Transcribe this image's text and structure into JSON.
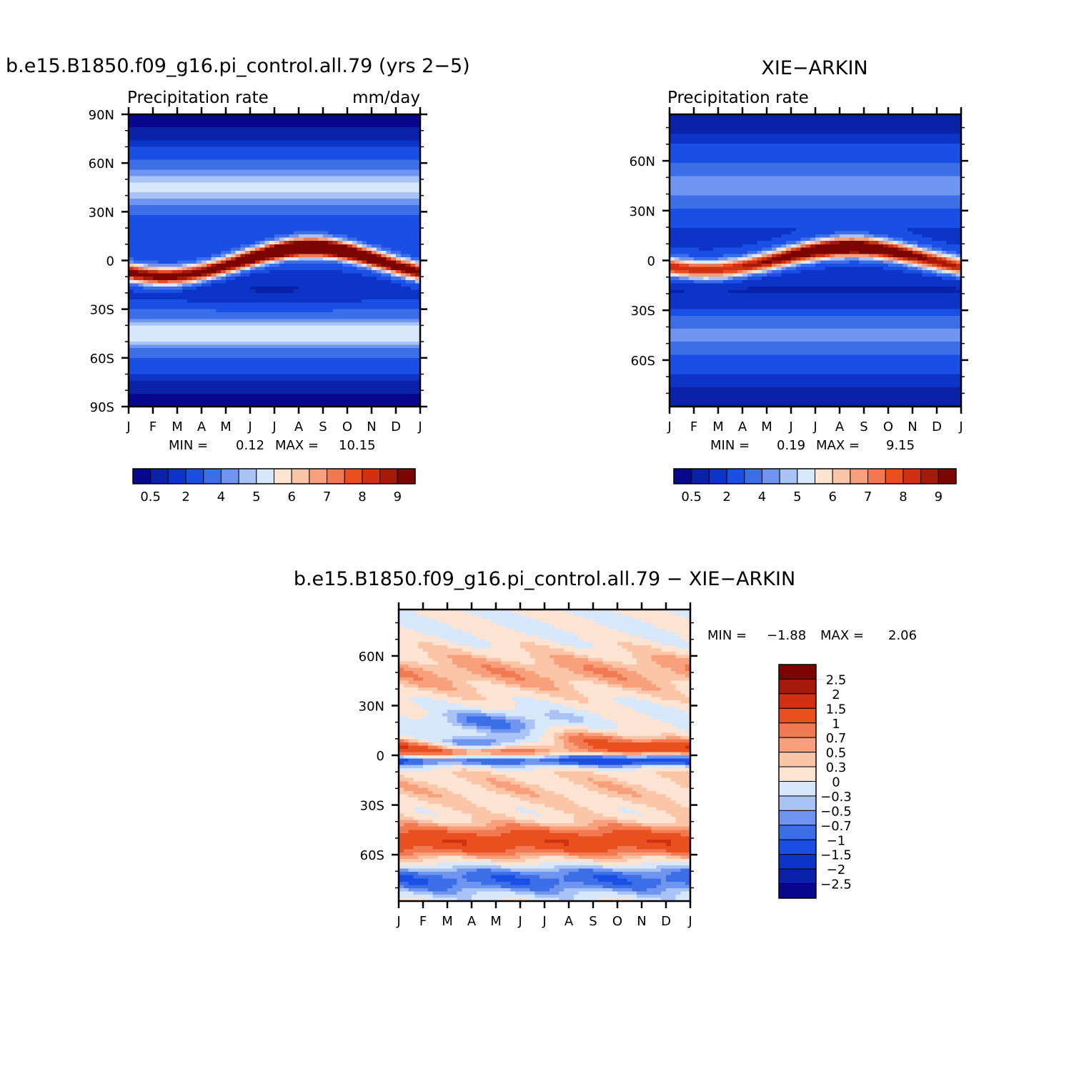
{
  "page": {
    "top_left_title": "b.e15.B1850.f09_g16.pi_control.all.79 (yrs 2-5)",
    "top_right_title": "XIE-ARKIN",
    "bottom_title": "b.e15.B1850.f09_g16.pi_control.all.79 - XIE-ARKIN"
  },
  "chart_data": [
    {
      "type": "heatmap",
      "title": "b.e15.B1850.f09_g16.pi_control.all.79 (yrs 2-5)",
      "subtitle_left": "Precipitation rate",
      "subtitle_right": "mm/day",
      "x_ticks": [
        "J",
        "F",
        "M",
        "A",
        "M",
        "J",
        "J",
        "A",
        "S",
        "O",
        "N",
        "D",
        "J"
      ],
      "y_ticks": [
        "90N",
        "60N",
        "30N",
        "0",
        "30S",
        "60S",
        "90S"
      ],
      "ylim": [
        -90,
        90
      ],
      "stats": {
        "min_label": "MIN =",
        "min": "0.12",
        "max_label": "MAX =",
        "max": "10.15"
      },
      "levels": [
        0.5,
        1,
        2,
        3,
        4,
        4.5,
        5,
        5.5,
        6,
        6.5,
        7,
        7.5,
        8,
        8.5,
        9
      ],
      "colorbar_labels": [
        "0.5",
        "2",
        "4",
        "5",
        "6",
        "7",
        "8",
        "9"
      ],
      "features": {
        "itcz_peak_month": 7.5,
        "itcz_peak_lat": 9,
        "itcz_peak_value": 10.15
      }
    },
    {
      "type": "heatmap",
      "title": "XIE-ARKIN",
      "subtitle_left": "Precipitation rate",
      "subtitle_right": "",
      "x_ticks": [
        "J",
        "F",
        "M",
        "A",
        "M",
        "J",
        "J",
        "A",
        "S",
        "O",
        "N",
        "D",
        "J"
      ],
      "y_ticks": [
        "60N",
        "30N",
        "0",
        "30S",
        "60S"
      ],
      "ylim": [
        -88,
        88
      ],
      "stats": {
        "min_label": "MIN =",
        "min": "0.19",
        "max_label": "MAX =",
        "max": "9.15"
      },
      "levels": [
        0.5,
        1,
        2,
        3,
        4,
        4.5,
        5,
        5.5,
        6,
        6.5,
        7,
        7.5,
        8,
        8.5,
        9
      ],
      "colorbar_labels": [
        "0.5",
        "2",
        "4",
        "5",
        "6",
        "7",
        "8",
        "9"
      ],
      "features": {
        "itcz_peak_month": 7.5,
        "itcz_peak_lat": 8,
        "itcz_peak_value": 9.15
      }
    },
    {
      "type": "heatmap",
      "title": "b.e15.B1850.f09_g16.pi_control.all.79 - XIE-ARKIN",
      "x_ticks": [
        "J",
        "F",
        "M",
        "A",
        "M",
        "J",
        "J",
        "A",
        "S",
        "O",
        "N",
        "D",
        "J"
      ],
      "y_ticks": [
        "60N",
        "30N",
        "0",
        "30S",
        "60S"
      ],
      "ylim": [
        -88,
        88
      ],
      "stats": {
        "min_label": "MIN =",
        "min": "-1.88",
        "max_label": "MAX =",
        "max": "2.06"
      },
      "levels": [
        -2.5,
        -2,
        -1.5,
        -1,
        -0.7,
        -0.5,
        -0.3,
        0,
        0.3,
        0.5,
        0.7,
        1,
        1.5,
        2,
        2.5
      ],
      "colorbar_labels": [
        "2.5",
        "2",
        "1.5",
        "1",
        "0.7",
        "0.5",
        "0.3",
        "0",
        "-0.3",
        "-0.5",
        "-0.7",
        "-1",
        "-1.5",
        "-2",
        "-2.5"
      ]
    }
  ],
  "colors": {
    "palette": [
      "#08088f",
      "#0a22a8",
      "#0c35c8",
      "#1a4fe6",
      "#3c6ee8",
      "#6f95f0",
      "#a9c3f7",
      "#d8e8fc",
      "#fde4d2",
      "#fbc5a8",
      "#f8a07c",
      "#f27a52",
      "#ea4f20",
      "#d13012",
      "#a51a08",
      "#7a0503"
    ]
  }
}
